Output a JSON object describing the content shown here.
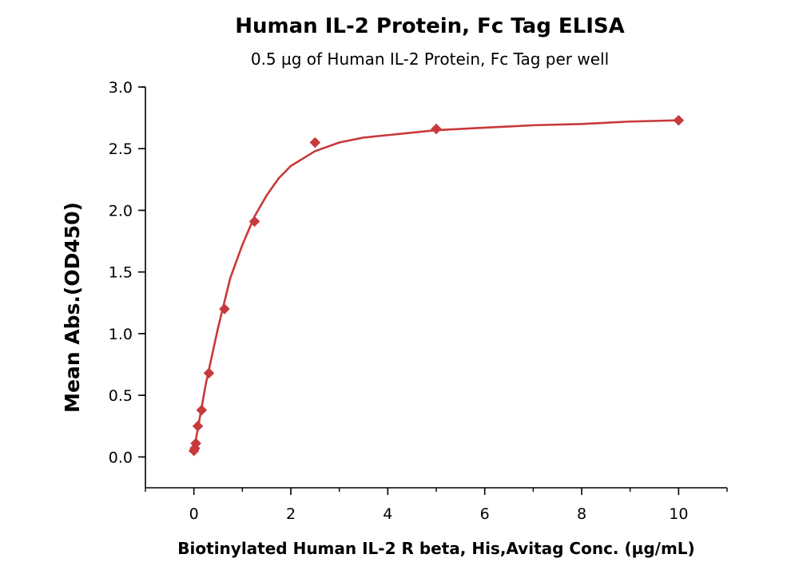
{
  "chart_data": {
    "type": "scatter",
    "title": "Human IL-2 Protein, Fc Tag ELISA",
    "subtitle": "0.5 µg of Human IL-2 Protein, Fc Tag per well",
    "xlabel": "Biotinylated Human IL-2 R beta, His,Avitag Conc. (µg/mL)",
    "ylabel": "Mean Abs.(OD450)",
    "xlim": [
      -1,
      11
    ],
    "ylim": [
      -0.25,
      3.0
    ],
    "xticks": [
      "0",
      "2",
      "4",
      "6",
      "8",
      "10"
    ],
    "yticks": [
      "0.0",
      "0.5",
      "1.0",
      "1.5",
      "2.0",
      "2.5",
      "3.0"
    ],
    "grid": false,
    "legend": "none",
    "color": "#c8393b",
    "series": [
      {
        "x": [
          0.0,
          0.02,
          0.04,
          0.08,
          0.16,
          0.31,
          0.63,
          1.25,
          2.5,
          5.0,
          10.0
        ],
        "y": [
          0.05,
          0.07,
          0.11,
          0.25,
          0.38,
          0.68,
          1.2,
          1.91,
          2.55,
          2.66,
          2.73
        ]
      }
    ],
    "fit_curve": {
      "x": [
        0,
        0.25,
        0.5,
        0.75,
        1.0,
        1.25,
        1.5,
        1.75,
        2.0,
        2.5,
        3.0,
        3.5,
        4.0,
        5.0,
        6.0,
        7.0,
        8.0,
        9.0,
        10.0
      ],
      "y": [
        0.05,
        0.6,
        1.05,
        1.45,
        1.72,
        1.95,
        2.12,
        2.26,
        2.36,
        2.48,
        2.55,
        2.59,
        2.61,
        2.65,
        2.67,
        2.69,
        2.7,
        2.72,
        2.73
      ]
    }
  }
}
